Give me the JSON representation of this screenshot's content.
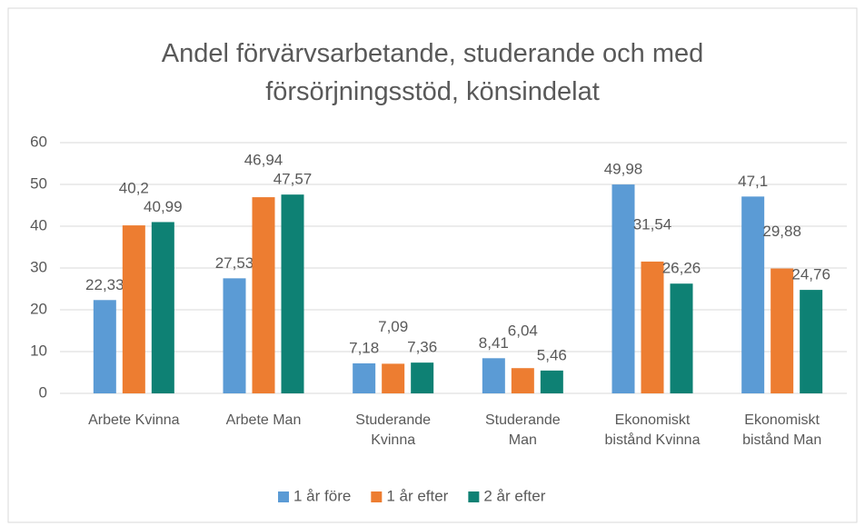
{
  "chart_data": {
    "type": "bar",
    "title": "Andel förvärvsarbetande, studerande och med\nförsörjningsstöd, könsindelat",
    "categories": [
      "Arbete Kvinna",
      "Arbete Man",
      "Studerande\nKvinna",
      "Studerande\nMan",
      "Ekonomiskt\nbistånd Kvinna",
      "Ekonomiskt\nbistånd Man"
    ],
    "series": [
      {
        "name": "1 år före",
        "color": "#5b9bd5",
        "values": [
          22.33,
          27.53,
          7.18,
          8.41,
          49.98,
          47.1
        ],
        "value_labels": [
          "22,33",
          "27,53",
          "7,18",
          "8,41",
          "49,98",
          "47,1"
        ]
      },
      {
        "name": "1 år efter",
        "color": "#ed7d31",
        "values": [
          40.2,
          46.94,
          7.09,
          6.04,
          31.54,
          29.88
        ],
        "value_labels": [
          "40,2",
          "46,94",
          "7,09",
          "6,04",
          "31,54",
          "29,88"
        ]
      },
      {
        "name": "2 år efter",
        "color": "#0e8174",
        "values": [
          40.99,
          47.57,
          7.36,
          5.46,
          26.26,
          24.76
        ],
        "value_labels": [
          "40,99",
          "47,57",
          "7,36",
          "5,46",
          "26,26",
          "24,76"
        ]
      }
    ],
    "ylim": [
      0,
      60
    ],
    "yticks": [
      0,
      10,
      20,
      30,
      40,
      50,
      60
    ],
    "grid": true,
    "legend": "bottom"
  }
}
